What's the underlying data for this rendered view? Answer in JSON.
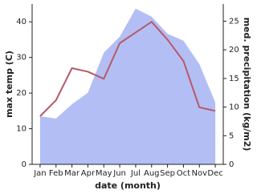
{
  "chart_data": {
    "type": "line",
    "xlabel": "date (month)",
    "ylabel": "max temp (C)",
    "y2label": "med. precipitation (kg/m2)",
    "categories": [
      "Jan",
      "Feb",
      "Mar",
      "Apr",
      "May",
      "Jun",
      "Jul",
      "Aug",
      "Sep",
      "Oct",
      "Nov",
      "Dec"
    ],
    "series": [
      {
        "type": "area",
        "axis": "y2",
        "color": "#b3bef5",
        "values": [
          8.4,
          8,
          10.5,
          12.5,
          19.5,
          22.3,
          27.2,
          25.8,
          22.8,
          21.6,
          17.5,
          10.8
        ]
      },
      {
        "type": "line",
        "axis": "y",
        "color": "#b85a66",
        "values": [
          13.5,
          18,
          27,
          26,
          24,
          34,
          37,
          40,
          35,
          29,
          16,
          15
        ]
      }
    ],
    "ylim": [
      0,
      45
    ],
    "yticks": [
      0,
      10,
      20,
      30,
      40
    ],
    "y2lim": [
      0,
      28
    ],
    "y2ticks": [
      0,
      5,
      10,
      15,
      20,
      25
    ]
  }
}
